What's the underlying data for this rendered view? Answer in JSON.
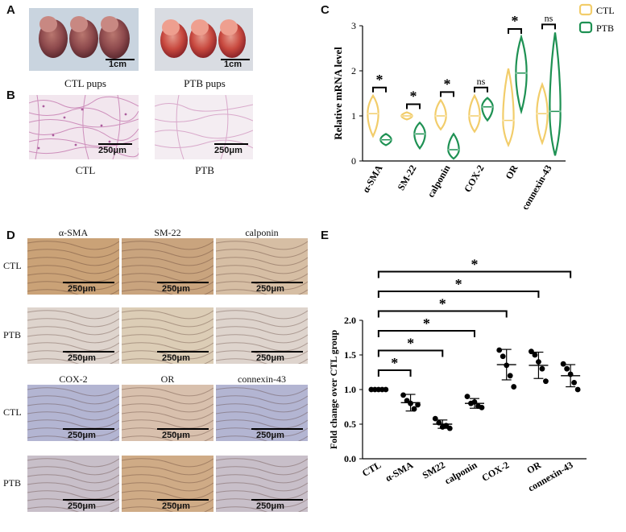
{
  "panels": {
    "A": {
      "letter": "A",
      "captions": [
        "CTL pups",
        "PTB pups"
      ],
      "scale_label": "1cm"
    },
    "B": {
      "letter": "B",
      "captions": [
        "CTL",
        "PTB"
      ],
      "scale_label": "250μm"
    },
    "C": {
      "letter": "C"
    },
    "D": {
      "letter": "D",
      "top_columns": [
        "α-SMA",
        "SM-22",
        "calponin"
      ],
      "bottom_columns": [
        "COX-2",
        "OR",
        "connexin-43"
      ],
      "rows": [
        "CTL",
        "PTB",
        "CTL",
        "PTB"
      ],
      "scale_label": "250μm"
    },
    "E": {
      "letter": "E"
    }
  },
  "chart_data": [
    {
      "type": "violin",
      "panel": "C",
      "ylabel": "Relative mRNA level",
      "categories": [
        "α-SMA",
        "SM-22",
        "calponin",
        "COX-2",
        "OR",
        "connexin-43"
      ],
      "yticks": [
        "0",
        "1",
        "2",
        "3"
      ],
      "ylim": [
        0,
        3
      ],
      "legend": {
        "placement": "top-right"
      },
      "series": [
        {
          "name": "CTL",
          "color": "#f2cd6b",
          "median": [
            1.05,
            1.0,
            1.0,
            1.0,
            0.9,
            1.05
          ],
          "range": [
            [
              0.55,
              1.45
            ],
            [
              0.92,
              1.08
            ],
            [
              0.7,
              1.35
            ],
            [
              0.65,
              1.45
            ],
            [
              0.35,
              2.05
            ],
            [
              0.4,
              1.7
            ]
          ]
        },
        {
          "name": "PTB",
          "color": "#1e9153",
          "median": [
            0.47,
            0.6,
            0.25,
            1.2,
            1.95,
            1.1
          ],
          "range": [
            [
              0.35,
              0.6
            ],
            [
              0.28,
              0.85
            ],
            [
              0.05,
              0.6
            ],
            [
              0.9,
              1.4
            ],
            [
              1.1,
              2.75
            ],
            [
              0.12,
              2.85
            ]
          ]
        }
      ],
      "significance": [
        "*",
        "*",
        "*",
        "ns",
        "*",
        "ns"
      ]
    },
    {
      "type": "scatter",
      "panel": "E",
      "ylabel": "Fold change over CTL group",
      "categories": [
        "CTL",
        "α-SMA",
        "SM22",
        "calponin",
        "COX-2",
        "OR",
        "connexin-43"
      ],
      "yticks": [
        "0.0",
        "0.5",
        "1.0",
        "1.5",
        "2.0"
      ],
      "ylim": [
        0,
        2.1
      ],
      "points": [
        [
          1.0,
          1.0,
          1.0,
          1.0,
          1.0
        ],
        [
          0.92,
          0.84,
          0.8,
          0.72,
          0.78
        ],
        [
          0.58,
          0.52,
          0.46,
          0.48,
          0.44
        ],
        [
          0.9,
          0.8,
          0.82,
          0.76,
          0.74
        ],
        [
          1.57,
          1.48,
          1.35,
          1.2,
          1.04
        ],
        [
          1.55,
          1.5,
          1.4,
          1.3,
          1.12
        ],
        [
          1.37,
          1.3,
          1.22,
          1.1,
          1.0
        ]
      ],
      "means": [
        1.0,
        0.81,
        0.5,
        0.8,
        1.36,
        1.35,
        1.2
      ],
      "sd": [
        0,
        0.12,
        0.06,
        0.07,
        0.22,
        0.19,
        0.16
      ],
      "significance": [
        {
          "to": "α-SMA",
          "mark": "*"
        },
        {
          "to": "SM22",
          "mark": "*"
        },
        {
          "to": "calponin",
          "mark": "*"
        },
        {
          "to": "COX-2",
          "mark": "*"
        },
        {
          "to": "OR",
          "mark": "*"
        },
        {
          "to": "connexin-43",
          "mark": "*"
        }
      ]
    }
  ]
}
